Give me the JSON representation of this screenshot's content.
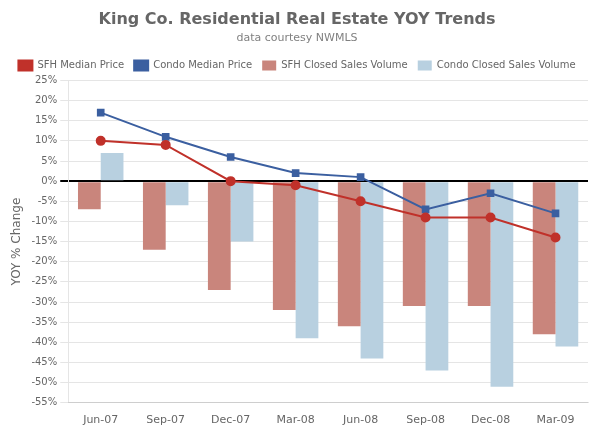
{
  "chart_data": {
    "type": "bar",
    "title": "King Co. Residential Real Estate YOY Trends",
    "subtitle": "data courtesy NWMLS",
    "y_label": "YOY % Change",
    "categories": [
      "Jun-07",
      "Sep-07",
      "Dec-07",
      "Mar-08",
      "Jun-08",
      "Sep-08",
      "Dec-08",
      "Mar-09"
    ],
    "series": [
      {
        "name": "SFH Closed Sales Volume",
        "type": "bar",
        "color": "#C9857C",
        "values": [
          -7,
          -17,
          -27,
          -32,
          -36,
          -31,
          -31,
          -38
        ]
      },
      {
        "name": "Condo Closed Sales Volume",
        "type": "bar",
        "color": "#B8D0E0",
        "values": [
          7,
          -6,
          -15,
          -39,
          -44,
          -47,
          -51,
          -41
        ]
      },
      {
        "name": "SFH Median Price",
        "type": "line",
        "marker": "circle",
        "color": "#C0312A",
        "values": [
          10,
          9,
          0,
          -1,
          -5,
          -9,
          -9,
          -14
        ]
      },
      {
        "name": "Condo Median Price",
        "type": "line",
        "marker": "square",
        "color": "#3B5FA0",
        "values": [
          17,
          11,
          6,
          2,
          1,
          -7,
          -3,
          -8
        ]
      }
    ],
    "ylim": [
      -55,
      25
    ],
    "yticks": [
      {
        "value": -55,
        "label": "-55%"
      },
      {
        "value": -50,
        "label": "-50%"
      },
      {
        "value": -45,
        "label": "-45%"
      },
      {
        "value": -40,
        "label": "-40%"
      },
      {
        "value": -35,
        "label": "-35%"
      },
      {
        "value": -30,
        "label": "-30%"
      },
      {
        "value": -25,
        "label": "-25%"
      },
      {
        "value": -20,
        "label": "-20%"
      },
      {
        "value": -15,
        "label": "-15%"
      },
      {
        "value": -10,
        "label": "-10%"
      },
      {
        "value": -5,
        "label": "-5%"
      },
      {
        "value": 0,
        "label": "0%"
      },
      {
        "value": 5,
        "label": "5%"
      },
      {
        "value": 10,
        "label": "10%"
      },
      {
        "value": 15,
        "label": "15%"
      },
      {
        "value": 20,
        "label": "20%"
      },
      {
        "value": 25,
        "label": "25%"
      }
    ],
    "grid": "y",
    "legend": "top"
  }
}
